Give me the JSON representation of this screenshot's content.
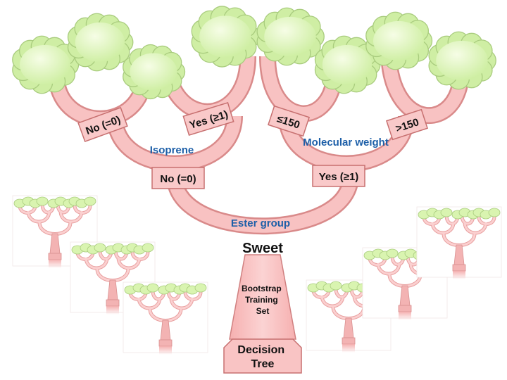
{
  "colors": {
    "branch_fill": "#f7b8b8",
    "branch_stroke": "#d98a8a",
    "leaf_fill": "#dff5b8",
    "leaf_stroke": "#a9cc7e",
    "box_fill": "#f9c9c9",
    "box_stroke": "#c77070",
    "feature_text": "#1d5fa8",
    "box_text": "#111111"
  },
  "diagram": {
    "root_label": "Sweet",
    "trunk_label": "Bootstrap Training Set",
    "base_label": "Decision Tree",
    "root_feature": "Ester group",
    "left_feature": "Isoprene",
    "right_feature": "Molecular weight",
    "left_branch_label": "No (=0)",
    "right_branch_label": "Yes (≥1)",
    "left_left_label": "No (=0)",
    "left_right_label": "Yes (≥1)",
    "right_left_label": "≤150",
    "right_right_label": ">150"
  },
  "trunk_label_lines": [
    "Bootstrap",
    "Training",
    "Set"
  ],
  "base_label_lines": [
    "Decision",
    "Tree"
  ],
  "forest_count": 6
}
